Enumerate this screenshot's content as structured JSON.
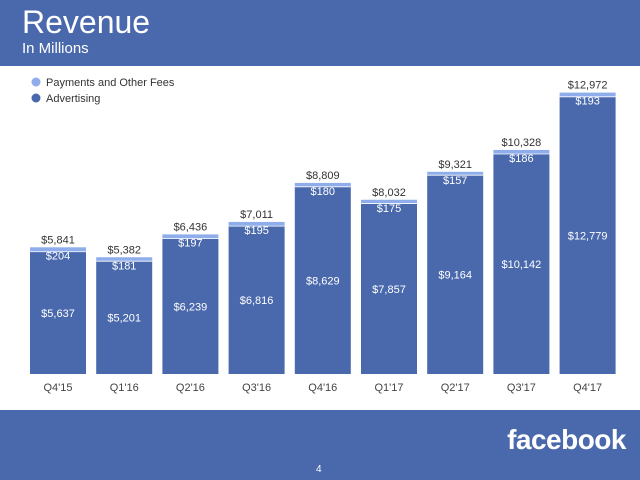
{
  "slide": {
    "title": "Revenue",
    "subtitle": "In Millions",
    "logo": "facebook",
    "page_number": "4"
  },
  "colors": {
    "header_bg": "#4a69ad",
    "advertising": "#4a69ad",
    "payments": "#8eadea",
    "label_light": "#ffffff",
    "label_dark": "#333333"
  },
  "chart_data": {
    "type": "bar",
    "stacked": true,
    "title": "Revenue",
    "subtitle": "In Millions",
    "categories": [
      "Q4'15",
      "Q1'16",
      "Q2'16",
      "Q3'16",
      "Q4'16",
      "Q1'17",
      "Q2'17",
      "Q3'17",
      "Q4'17"
    ],
    "series": [
      {
        "name": "Advertising",
        "values": [
          5637,
          5201,
          6239,
          6816,
          8629,
          7857,
          9164,
          10142,
          12779
        ],
        "labels": [
          "$5,637",
          "$5,201",
          "$6,239",
          "$6,816",
          "$8,629",
          "$7,857",
          "$9,164",
          "$10,142",
          "$12,779"
        ]
      },
      {
        "name": "Payments and Other Fees",
        "values": [
          204,
          181,
          197,
          195,
          180,
          175,
          157,
          186,
          193
        ],
        "labels": [
          "$204",
          "$181",
          "$197",
          "$195",
          "$180",
          "$175",
          "$157",
          "$186",
          "$193"
        ]
      }
    ],
    "totals": [
      5841,
      5382,
      6436,
      7011,
      8809,
      8032,
      9321,
      10328,
      12972
    ],
    "total_labels": [
      "$5,841",
      "$5,382",
      "$6,436",
      "$7,011",
      "$8,809",
      "$8,032",
      "$9,321",
      "$10,328",
      "$12,972"
    ],
    "legend": [
      "Payments and Other Fees",
      "Advertising"
    ],
    "legend_position": "top-left",
    "ylim": [
      0,
      13000
    ],
    "grid": false,
    "xlabel": "",
    "ylabel": ""
  }
}
